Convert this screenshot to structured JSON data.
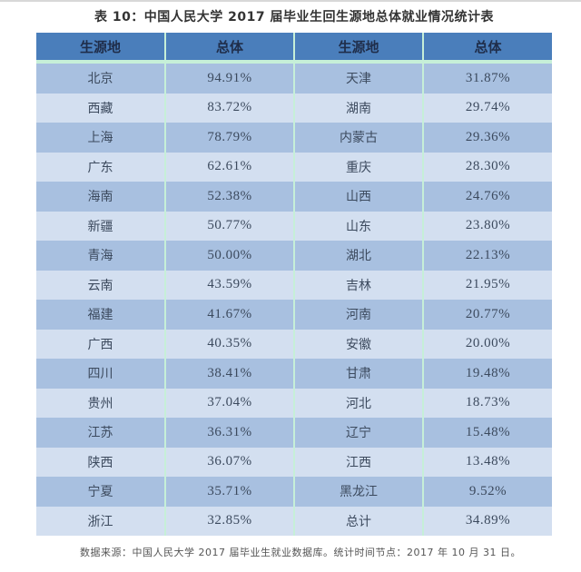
{
  "title": "表 10：中国人民大学 2017 届毕业生回生源地总体就业情况统计表",
  "table": {
    "headers": [
      "生源地",
      "总体",
      "生源地",
      "总体"
    ],
    "rows": [
      {
        "left_origin": "北京",
        "left_rate": "94.91%",
        "right_origin": "天津",
        "right_rate": "31.87%"
      },
      {
        "left_origin": "西藏",
        "left_rate": "83.72%",
        "right_origin": "湖南",
        "right_rate": "29.74%"
      },
      {
        "left_origin": "上海",
        "left_rate": "78.79%",
        "right_origin": "内蒙古",
        "right_rate": "29.36%"
      },
      {
        "left_origin": "广东",
        "left_rate": "62.61%",
        "right_origin": "重庆",
        "right_rate": "28.30%"
      },
      {
        "left_origin": "海南",
        "left_rate": "52.38%",
        "right_origin": "山西",
        "right_rate": "24.76%"
      },
      {
        "left_origin": "新疆",
        "left_rate": "50.77%",
        "right_origin": "山东",
        "right_rate": "23.80%"
      },
      {
        "left_origin": "青海",
        "left_rate": "50.00%",
        "right_origin": "湖北",
        "right_rate": "22.13%"
      },
      {
        "left_origin": "云南",
        "left_rate": "43.59%",
        "right_origin": "吉林",
        "right_rate": "21.95%"
      },
      {
        "left_origin": "福建",
        "left_rate": "41.67%",
        "right_origin": "河南",
        "right_rate": "20.77%"
      },
      {
        "left_origin": "广西",
        "left_rate": "40.35%",
        "right_origin": "安徽",
        "right_rate": "20.00%"
      },
      {
        "left_origin": "四川",
        "left_rate": "38.41%",
        "right_origin": "甘肃",
        "right_rate": "19.48%"
      },
      {
        "left_origin": "贵州",
        "left_rate": "37.04%",
        "right_origin": "河北",
        "right_rate": "18.73%"
      },
      {
        "left_origin": "江苏",
        "left_rate": "36.31%",
        "right_origin": "辽宁",
        "right_rate": "15.48%"
      },
      {
        "left_origin": "陕西",
        "left_rate": "36.07%",
        "right_origin": "江西",
        "right_rate": "13.48%"
      },
      {
        "left_origin": "宁夏",
        "left_rate": "35.71%",
        "right_origin": "黑龙江",
        "right_rate": "9.52%"
      },
      {
        "left_origin": "浙江",
        "left_rate": "32.85%",
        "right_origin": "总计",
        "right_rate": "34.89%"
      }
    ]
  },
  "footnote": "数据来源：中国人民大学 2017 届毕业生就业数据库。统计时间节点：2017 年 10 月 31 日。",
  "colors": {
    "header_bg": "#4a7ebb",
    "row_dark": "#a8c0e0",
    "row_light": "#d3dff0",
    "grid_line": "#c6efd8"
  }
}
